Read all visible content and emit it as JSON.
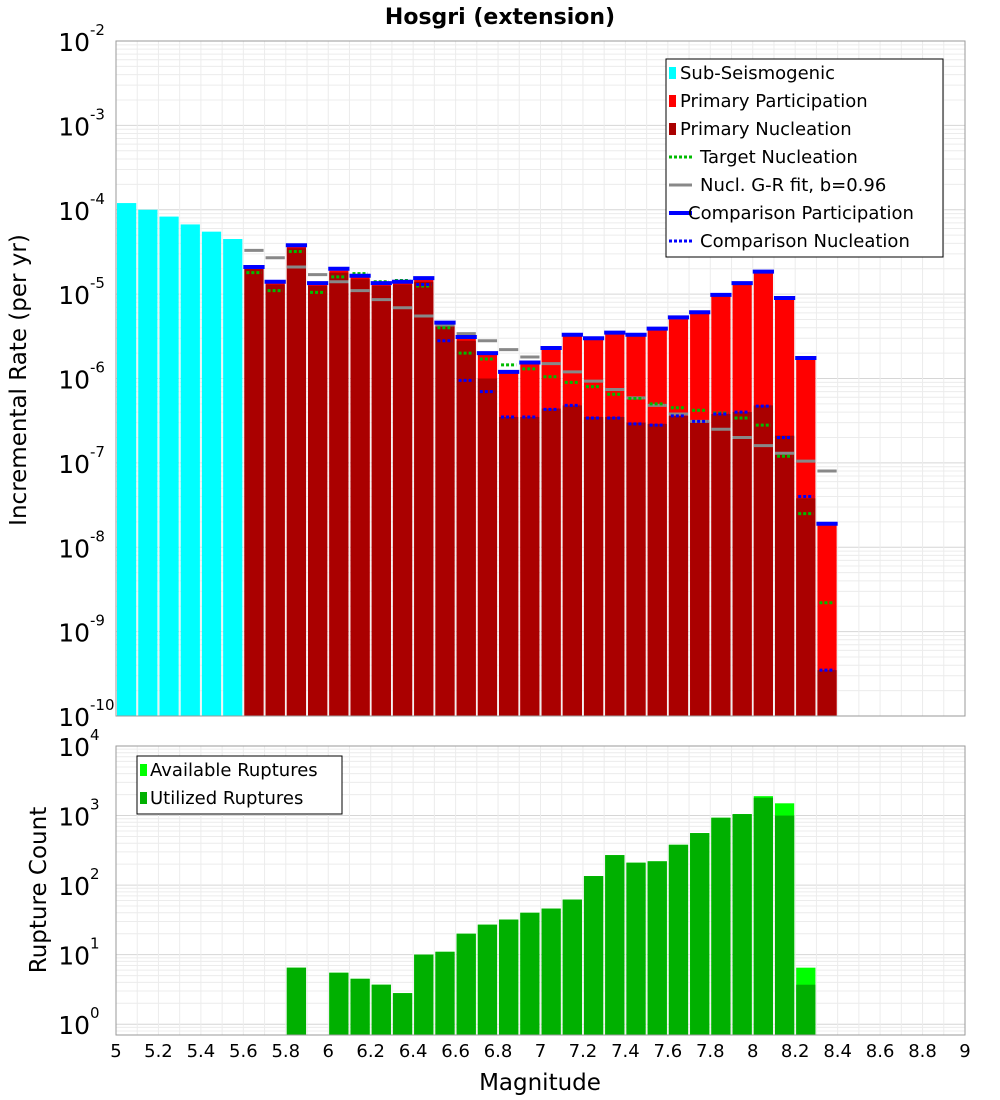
{
  "chart_data": [
    {
      "type": "bar",
      "title": "Hosgri (extension)",
      "xlabel": "Magnitude",
      "ylabel": "Incremental Rate (per yr)",
      "xlim": [
        5,
        9
      ],
      "ylim": [
        1e-10,
        0.01
      ],
      "yscale": "log",
      "legend_position": "top-right",
      "x": [
        5.05,
        5.15,
        5.25,
        5.35,
        5.45,
        5.55,
        5.65,
        5.75,
        5.85,
        5.95,
        6.05,
        6.15,
        6.25,
        6.35,
        6.45,
        6.55,
        6.65,
        6.75,
        6.85,
        6.95,
        7.05,
        7.15,
        7.25,
        7.35,
        7.45,
        7.55,
        7.65,
        7.75,
        7.85,
        7.95,
        8.05,
        8.15,
        8.25,
        8.35
      ],
      "yticks": [
        {
          "base": "10",
          "exp": "-10"
        },
        {
          "base": "10",
          "exp": "-9"
        },
        {
          "base": "10",
          "exp": "-8"
        },
        {
          "base": "10",
          "exp": "-7"
        },
        {
          "base": "10",
          "exp": "-6"
        },
        {
          "base": "10",
          "exp": "-5"
        },
        {
          "base": "10",
          "exp": "-4"
        },
        {
          "base": "10",
          "exp": "-3"
        },
        {
          "base": "10",
          "exp": "-2"
        }
      ],
      "series": [
        {
          "name": "Sub-Seismogenic",
          "color": "#00ffff",
          "style": "bar",
          "values": [
            0.00012,
            0.0001,
            8.3e-05,
            6.7e-05,
            5.5e-05,
            4.5e-05,
            null,
            null,
            null,
            null,
            null,
            null,
            null,
            null,
            null,
            null,
            null,
            null,
            null,
            null,
            null,
            null,
            null,
            null,
            null,
            null,
            null,
            null,
            null,
            null,
            null,
            null,
            null,
            null
          ]
        },
        {
          "name": "Primary Participation",
          "color": "#ff0000",
          "style": "bar",
          "values": [
            null,
            null,
            null,
            null,
            null,
            null,
            2.1e-05,
            1.35e-05,
            3.7e-05,
            1.3e-05,
            1.9e-05,
            1.6e-05,
            1.3e-05,
            1.35e-05,
            1.5e-05,
            4.5e-06,
            3e-06,
            2e-06,
            1.2e-06,
            1.55e-06,
            2.3e-06,
            3.2e-06,
            3e-06,
            3.5e-06,
            3.2e-06,
            3.9e-06,
            5.3e-06,
            6e-06,
            9.7e-06,
            1.3e-05,
            1.8e-05,
            8.7e-06,
            1.7e-06,
            1.9e-08
          ]
        },
        {
          "name": "Primary Nucleation",
          "color": "#aa0000",
          "style": "bar",
          "values": [
            null,
            null,
            null,
            null,
            null,
            null,
            2e-05,
            1.3e-05,
            3.5e-05,
            1.25e-05,
            1.8e-05,
            1.5e-05,
            1.25e-05,
            1.3e-05,
            1.4e-05,
            4.2e-06,
            2.8e-06,
            1e-06,
            3.5e-07,
            3.5e-07,
            4.4e-07,
            4.8e-07,
            3.5e-07,
            3.5e-07,
            3e-07,
            2.9e-07,
            3.6e-07,
            3.1e-07,
            3.8e-07,
            4e-07,
            4.8e-07,
            2.1e-07,
            3.8e-08,
            3.5e-10
          ]
        },
        {
          "name": "Target Nucleation",
          "color": "#00bb00",
          "style": "dotted",
          "values": [
            null,
            null,
            null,
            null,
            null,
            null,
            1.8e-05,
            1.1e-05,
            3.2e-05,
            1.05e-05,
            1.6e-05,
            1.75e-05,
            1.4e-05,
            1.45e-05,
            1.25e-05,
            4e-06,
            2e-06,
            1.7e-06,
            1.45e-06,
            1.3e-06,
            1.05e-06,
            9e-07,
            8e-07,
            6.5e-07,
            5.8e-07,
            5e-07,
            4.5e-07,
            4.2e-07,
            3.9e-07,
            3.4e-07,
            2.8e-07,
            1.2e-07,
            2.5e-08,
            2.2e-09
          ]
        },
        {
          "name": "Nucl. G-R fit, b=0.96",
          "color": "#888888",
          "style": "solid",
          "values": [
            null,
            null,
            null,
            null,
            null,
            null,
            3.3e-05,
            2.7e-05,
            2.1e-05,
            1.7e-05,
            1.4e-05,
            1.1e-05,
            8.6e-06,
            6.9e-06,
            5.5e-06,
            4.3e-06,
            3.4e-06,
            2.8e-06,
            2.2e-06,
            1.8e-06,
            1.5e-06,
            1.2e-06,
            9.3e-07,
            7.4e-07,
            5.9e-07,
            4.8e-07,
            3.8e-07,
            3.1e-07,
            2.5e-07,
            2e-07,
            1.6e-07,
            1.3e-07,
            1.05e-07,
            8e-08
          ]
        },
        {
          "name": "Comparison Participation",
          "color": "#0000ff",
          "style": "solid",
          "values": [
            null,
            null,
            null,
            null,
            null,
            null,
            2.1e-05,
            1.4e-05,
            3.8e-05,
            1.35e-05,
            2e-05,
            1.65e-05,
            1.35e-05,
            1.4e-05,
            1.55e-05,
            4.6e-06,
            3.1e-06,
            2e-06,
            1.2e-06,
            1.55e-06,
            2.3e-06,
            3.3e-06,
            3e-06,
            3.5e-06,
            3.3e-06,
            3.9e-06,
            5.3e-06,
            6.1e-06,
            9.8e-06,
            1.35e-05,
            1.85e-05,
            9e-06,
            1.75e-06,
            1.9e-08
          ]
        },
        {
          "name": "Comparison Nucleation",
          "color": "#0000ff",
          "style": "dotted",
          "values": [
            null,
            null,
            null,
            null,
            null,
            null,
            null,
            null,
            null,
            null,
            null,
            null,
            null,
            null,
            1.3e-05,
            2.8e-06,
            9.5e-07,
            7e-07,
            3.5e-07,
            3.5e-07,
            4.3e-07,
            4.8e-07,
            3.4e-07,
            3.4e-07,
            2.9e-07,
            2.8e-07,
            3.6e-07,
            3.1e-07,
            3.8e-07,
            4e-07,
            4.7e-07,
            2e-07,
            4e-08,
            3.5e-10
          ]
        }
      ]
    },
    {
      "type": "bar",
      "title": "",
      "xlabel": "Magnitude",
      "ylabel": "Rupture Count",
      "xlim": [
        5,
        9
      ],
      "ylim": [
        0.7,
        10000.0
      ],
      "yscale": "log",
      "legend_position": "top-left",
      "x": [
        5.05,
        5.15,
        5.25,
        5.35,
        5.45,
        5.55,
        5.65,
        5.75,
        5.85,
        5.95,
        6.05,
        6.15,
        6.25,
        6.35,
        6.45,
        6.55,
        6.65,
        6.75,
        6.85,
        6.95,
        7.05,
        7.15,
        7.25,
        7.35,
        7.45,
        7.55,
        7.65,
        7.75,
        7.85,
        7.95,
        8.05,
        8.15,
        8.25,
        8.35
      ],
      "xticks": [
        "5",
        "5.2",
        "5.4",
        "5.6",
        "5.8",
        "6",
        "6.2",
        "6.4",
        "6.6",
        "6.8",
        "7",
        "7.2",
        "7.4",
        "7.6",
        "7.8",
        "8",
        "8.2",
        "8.4",
        "8.6",
        "8.8",
        "9"
      ],
      "yticks": [
        {
          "base": "10",
          "exp": "0"
        },
        {
          "base": "10",
          "exp": "1"
        },
        {
          "base": "10",
          "exp": "2"
        },
        {
          "base": "10",
          "exp": "3"
        },
        {
          "base": "10",
          "exp": "4"
        }
      ],
      "series": [
        {
          "name": "Available Ruptures",
          "color": "#00ff00",
          "values": [
            null,
            null,
            null,
            null,
            null,
            null,
            null,
            null,
            6.5,
            null,
            5.5,
            4.5,
            3.7,
            2.8,
            10,
            11,
            20,
            27,
            32,
            40,
            46,
            62,
            135,
            270,
            210,
            220,
            380,
            560,
            930,
            1050,
            1900,
            1500,
            6.5,
            null
          ]
        },
        {
          "name": "Utilized Ruptures",
          "color": "#00b000",
          "values": [
            null,
            null,
            null,
            null,
            null,
            null,
            null,
            null,
            6.5,
            null,
            5.5,
            4.5,
            3.7,
            2.8,
            10,
            11,
            20,
            27,
            32,
            40,
            46,
            62,
            135,
            270,
            210,
            220,
            380,
            560,
            930,
            1050,
            1800,
            1000,
            3.7,
            null
          ]
        }
      ]
    }
  ]
}
